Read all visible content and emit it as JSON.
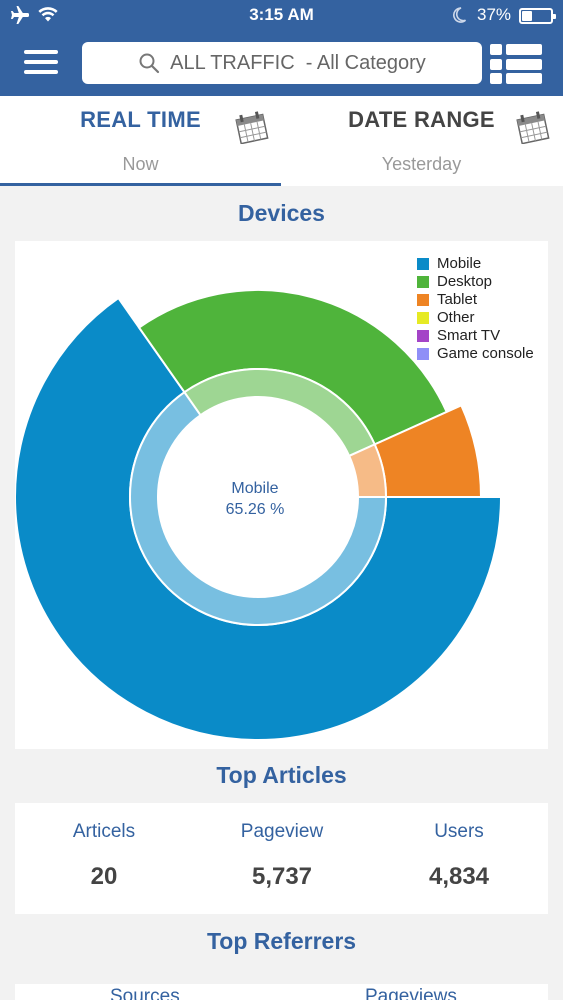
{
  "status_bar": {
    "time": "3:15 AM",
    "battery_percent": "37%",
    "battery_level": 0.37
  },
  "header": {
    "search_text": "ALL TRAFFIC  - All Category"
  },
  "tabs": [
    {
      "title": "REAL TIME",
      "sub": "Now",
      "active": true
    },
    {
      "title": "DATE RANGE",
      "sub": "Yesterday",
      "active": false
    }
  ],
  "devices": {
    "title": "Devices",
    "center_label": "Mobile",
    "center_value": "65.26 %",
    "colors": {
      "Mobile": "#0a8bc8",
      "Desktop": "#4fb43b",
      "Tablet": "#ee8424",
      "Other": "#e6ea24",
      "Smart TV": "#a444c7",
      "Game console": "#8f8ff7"
    }
  },
  "chart_data": {
    "type": "pie",
    "categories": [
      "Mobile",
      "Desktop",
      "Tablet",
      "Other",
      "Smart TV",
      "Game console"
    ],
    "values": [
      65.26,
      28.0,
      6.74,
      0,
      0,
      0
    ],
    "legend": "top-right"
  },
  "top_articles": {
    "title": "Top Articles",
    "columns": [
      {
        "label": "Articels",
        "value": "20"
      },
      {
        "label": "Pageview",
        "value": "5,737"
      },
      {
        "label": "Users",
        "value": "4,834"
      }
    ]
  },
  "top_referrers": {
    "title": "Top Referrers",
    "columns": [
      "Sources",
      "Pageviews"
    ]
  }
}
